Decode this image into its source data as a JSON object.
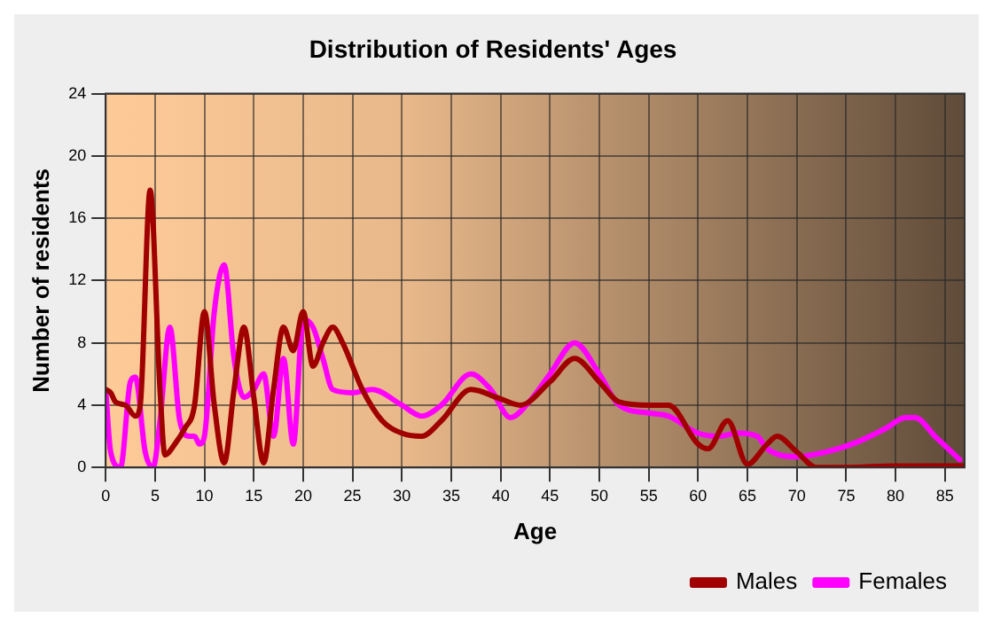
{
  "chart_data": {
    "type": "line",
    "title": "Distribution of Residents' Ages",
    "xlabel": "Age",
    "ylabel": "Number of residents",
    "xlim": [
      0,
      87
    ],
    "xticks": [
      0,
      5,
      10,
      15,
      20,
      25,
      30,
      35,
      40,
      45,
      50,
      55,
      60,
      65,
      70,
      75,
      80,
      85
    ],
    "ylim": [
      0,
      24
    ],
    "yticks": [
      0,
      4,
      8,
      12,
      16,
      20,
      24
    ],
    "grid": true,
    "legend": "bottom right",
    "marker": "none",
    "line_style": "solid",
    "series": [
      {
        "name": "Males",
        "color": "#a00000",
        "x": [
          0,
          0.5,
          1,
          2,
          3,
          3.5,
          4.5,
          5.5,
          6,
          7,
          8,
          9,
          10,
          11,
          12,
          13,
          14,
          15,
          16,
          17,
          18,
          19,
          20,
          21,
          22,
          23,
          24,
          26,
          28,
          30,
          32,
          34,
          37,
          40,
          42,
          45,
          47.5,
          50,
          52,
          55,
          57,
          60,
          61,
          63,
          65,
          67,
          68,
          70,
          72,
          75,
          80,
          87
        ],
        "values": [
          5,
          4.8,
          4.2,
          4,
          3.3,
          4,
          17.8,
          5,
          0.8,
          1.5,
          2.5,
          4,
          10,
          4,
          0.3,
          5,
          9,
          4.5,
          0.3,
          5,
          9,
          7.5,
          10,
          6.5,
          8,
          9,
          8,
          5,
          3,
          2.2,
          2,
          3,
          5,
          4.4,
          4,
          5.5,
          7,
          5.5,
          4.2,
          4,
          4,
          1.5,
          1.2,
          3,
          0.2,
          1.5,
          2,
          1,
          0,
          0,
          0.1,
          0.1
        ]
      },
      {
        "name": "Females",
        "color": "#ff00ff",
        "x": [
          0,
          0.5,
          1.5,
          2.5,
          3,
          4,
          4.8,
          5.5,
          6.5,
          7.5,
          8.5,
          9,
          9.5,
          10,
          11,
          12,
          13,
          14,
          15,
          16,
          17,
          18,
          19,
          20,
          21,
          22,
          23,
          25,
          27,
          30,
          32,
          34,
          37,
          39,
          41,
          43,
          45,
          47.5,
          50,
          52,
          55,
          57,
          60,
          62,
          64,
          66,
          67,
          70,
          73,
          76,
          79,
          81,
          82,
          84,
          86.5
        ],
        "values": [
          5,
          1,
          0,
          5.5,
          5.8,
          1,
          0,
          3,
          9,
          3,
          2,
          2,
          1.5,
          2,
          10,
          13,
          7,
          4.5,
          5,
          6,
          2,
          7,
          1.5,
          9.5,
          9,
          7,
          5,
          4.8,
          5,
          4,
          3.3,
          4,
          6,
          5,
          3.2,
          4.3,
          6,
          8,
          6,
          4,
          3.5,
          3.3,
          2.2,
          2,
          2.2,
          2,
          1.2,
          0.7,
          1,
          1.6,
          2.5,
          3.2,
          3.2,
          2,
          0.5
        ]
      }
    ]
  }
}
